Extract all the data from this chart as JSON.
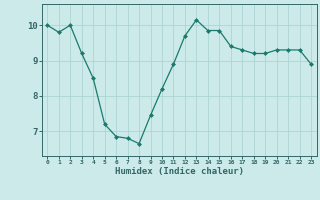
{
  "x": [
    0,
    1,
    2,
    3,
    4,
    5,
    6,
    7,
    8,
    9,
    10,
    11,
    12,
    13,
    14,
    15,
    16,
    17,
    18,
    19,
    20,
    21,
    22,
    23
  ],
  "y": [
    10.0,
    9.8,
    10.0,
    9.2,
    8.5,
    7.2,
    6.85,
    6.8,
    6.65,
    7.45,
    8.2,
    8.9,
    9.7,
    10.15,
    9.85,
    9.85,
    9.4,
    9.3,
    9.2,
    9.2,
    9.3,
    9.3,
    9.3,
    8.9
  ],
  "xlabel": "Humidex (Indice chaleur)",
  "xlim": [
    -0.5,
    23.5
  ],
  "ylim": [
    6.3,
    10.6
  ],
  "yticks": [
    7,
    8,
    9,
    10
  ],
  "xticks": [
    0,
    1,
    2,
    3,
    4,
    5,
    6,
    7,
    8,
    9,
    10,
    11,
    12,
    13,
    14,
    15,
    16,
    17,
    18,
    19,
    20,
    21,
    22,
    23
  ],
  "line_color": "#1a7a6e",
  "marker_color": "#1a7a6e",
  "bg_color": "#cceaea",
  "grid_color": "#add4d4",
  "axis_color": "#336666",
  "tick_color": "#336666",
  "label_color": "#336666"
}
